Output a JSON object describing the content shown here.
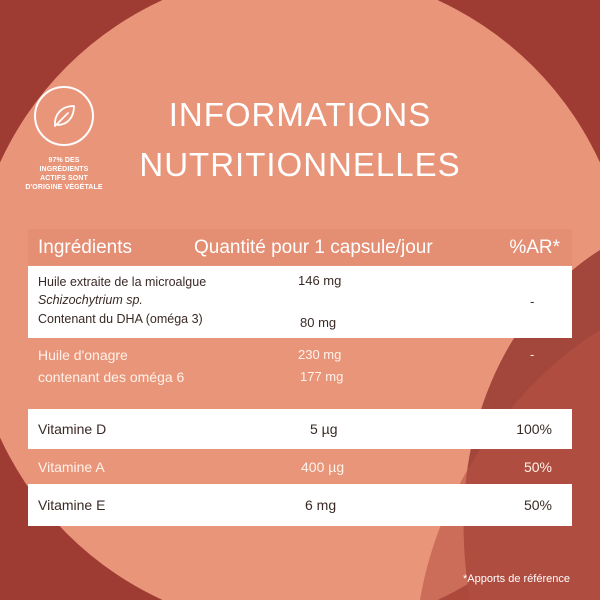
{
  "colors": {
    "background_dark": "#a8453a",
    "circle_salmon": "#e9957a",
    "header_row": "#e48e73",
    "row_white": "#ffffff"
  },
  "badge": {
    "icon": "leaf-icon",
    "text_line1": "97% DES INGRÉDIENTS",
    "text_line2": "ACTIFS SONT",
    "text_line3": "D'ORIGINE VÉGÉTALE"
  },
  "title": {
    "line1": "INFORMATIONS",
    "line2": "NUTRITIONNELLES"
  },
  "table": {
    "headers": {
      "ingredients": "Ingrédients",
      "quantity": "Quantité pour 1 capsule/jour",
      "ar": "%AR*"
    },
    "rows": [
      {
        "ingredient_line1": "Huile extraite de la microalgue",
        "ingredient_line2": "Schizochytrium sp.",
        "ingredient_line3": "Contenant du DHA (oméga 3)",
        "quantity1": "146 mg",
        "quantity2": "80 mg",
        "ar": "-"
      },
      {
        "ingredient_line1": "Huile d'onagre",
        "ingredient_line2": "contenant des oméga 6",
        "quantity1": "230 mg",
        "quantity2": "177 mg",
        "ar": "-"
      },
      {
        "ingredient": "Vitamine D",
        "quantity": "5 µg",
        "ar": "100%"
      },
      {
        "ingredient": "Vitamine A",
        "quantity": "400 µg",
        "ar": "50%"
      },
      {
        "ingredient": "Vitamine E",
        "quantity": "6 mg",
        "ar": "50%"
      }
    ]
  },
  "footnote": "*Apports de référence"
}
